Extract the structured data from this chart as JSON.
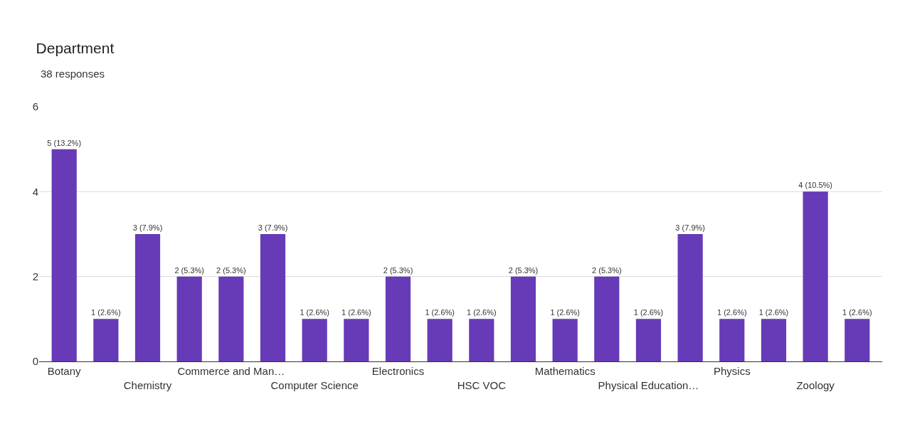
{
  "chart_data": {
    "type": "bar",
    "title": "Department",
    "subtitle": "38 responses",
    "categories": [
      "Botany",
      null,
      "Chemistry",
      null,
      "Commerce and Man…",
      null,
      "Computer Science",
      null,
      "Electronics",
      null,
      "HSC VOC",
      null,
      "Mathematics",
      null,
      "Physical Education…",
      null,
      "Physics",
      null,
      "Zoology",
      null
    ],
    "values": [
      5,
      1,
      3,
      2,
      2,
      3,
      1,
      1,
      2,
      1,
      1,
      2,
      1,
      2,
      1,
      3,
      1,
      1,
      4,
      1
    ],
    "value_labels": [
      "5 (13.2%)",
      "1 (2.6%)",
      "3 (7.9%)",
      "2 (5.3%)",
      "2 (5.3%)",
      "3 (7.9%)",
      "1 (2.6%)",
      "1 (2.6%)",
      "2 (5.3%)",
      "1 (2.6%)",
      "1 (2.6%)",
      "2 (5.3%)",
      "1 (2.6%)",
      "2 (5.3%)",
      "1 (2.6%)",
      "3 (7.9%)",
      "1 (2.6%)",
      "1 (2.6%)",
      "4 (10.5%)",
      "1 (2.6%)"
    ],
    "color": "#673ab7",
    "ylim": [
      0,
      6
    ],
    "yticks": [
      0,
      2,
      4,
      6
    ],
    "grid": "y"
  }
}
